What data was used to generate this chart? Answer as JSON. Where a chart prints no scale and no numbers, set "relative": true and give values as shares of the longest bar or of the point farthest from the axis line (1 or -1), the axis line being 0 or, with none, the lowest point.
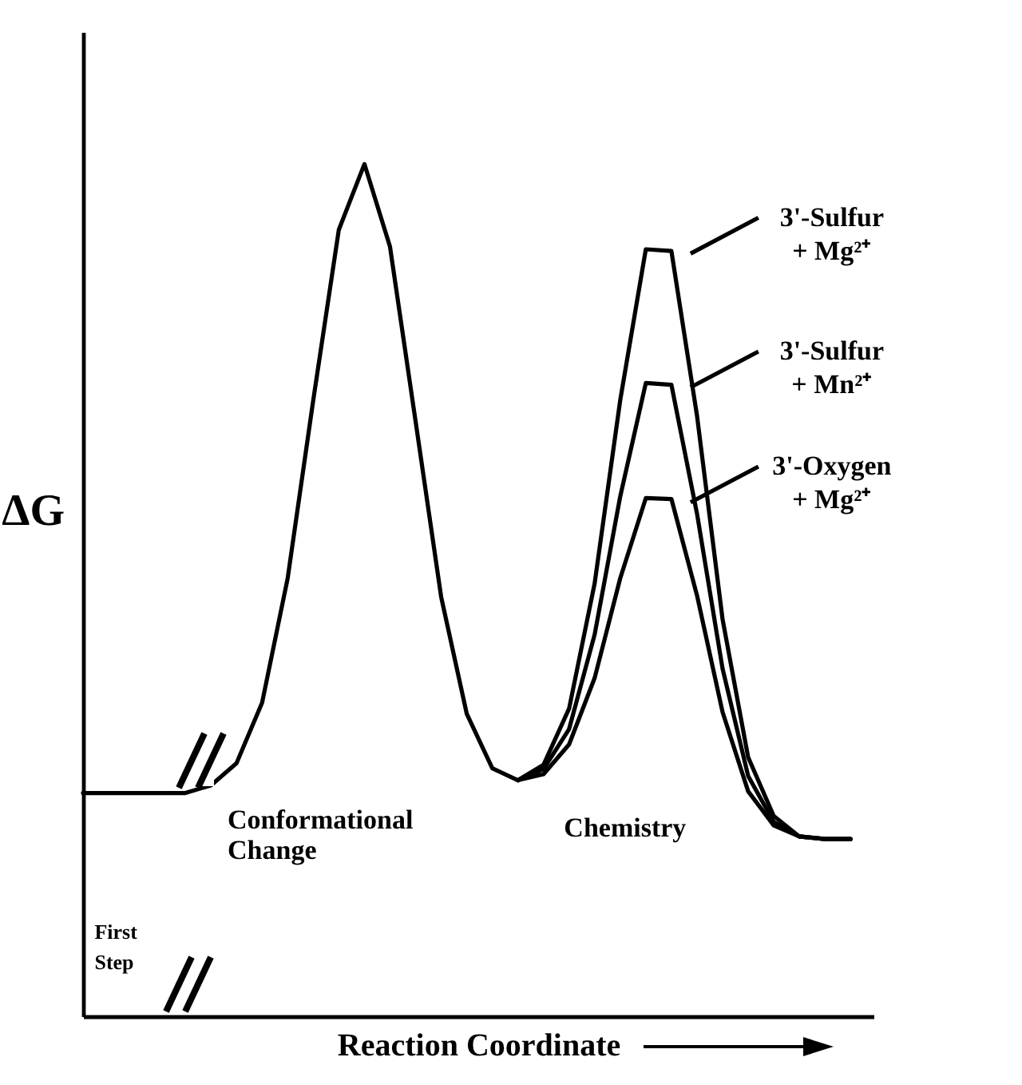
{
  "chart_data": {
    "type": "line",
    "relative": true,
    "xlabel": "Reaction Coordinate",
    "ylabel": "ΔG",
    "categories": [
      null,
      null,
      null,
      null,
      null,
      null,
      null,
      null,
      null,
      null,
      null,
      null,
      null,
      null,
      null,
      null,
      null,
      null,
      null,
      null,
      null,
      null,
      null,
      null,
      null,
      null,
      null,
      null,
      null,
      null,
      null
    ],
    "series": [
      {
        "color": "#000000",
        "values": [
          0.262,
          0.262,
          0.262,
          0.262,
          0.262,
          0.271,
          0.297,
          0.368,
          0.514,
          0.723,
          0.923,
          1,
          0.903,
          0.698,
          0.492,
          0.355,
          0.291,
          0.277,
          null,
          null,
          null,
          null,
          null,
          null,
          null,
          null,
          null,
          null,
          null,
          null,
          null
        ]
      },
      {
        "name": "3'-Sulfur + Mg²⁺",
        "color": "#000000",
        "values": [
          null,
          null,
          null,
          null,
          null,
          null,
          null,
          null,
          null,
          null,
          null,
          null,
          null,
          null,
          null,
          null,
          null,
          0.277,
          0.295,
          0.361,
          0.508,
          0.723,
          0.9,
          0.898,
          0.705,
          0.466,
          0.304,
          0.235,
          0.211,
          0.208,
          0.208
        ]
      },
      {
        "name": "3'-Sulfur + Mn²⁺",
        "color": "#000000",
        "values": [
          null,
          null,
          null,
          null,
          null,
          null,
          null,
          null,
          null,
          null,
          null,
          null,
          null,
          null,
          null,
          null,
          null,
          0.277,
          0.29,
          0.337,
          0.448,
          0.61,
          0.743,
          0.741,
          0.59,
          0.408,
          0.282,
          0.228,
          0.211,
          0.208,
          0.208
        ]
      },
      {
        "name": "3'-Oxygen + Mg²⁺",
        "color": "#000000",
        "values": [
          null,
          null,
          null,
          null,
          null,
          null,
          null,
          null,
          null,
          null,
          null,
          null,
          null,
          null,
          null,
          null,
          null,
          0.277,
          0.284,
          0.319,
          0.397,
          0.514,
          0.608,
          0.607,
          0.494,
          0.357,
          0.264,
          0.224,
          0.211,
          0.208,
          0.208
        ]
      }
    ],
    "annotations": [
      "Conformational Change",
      "Chemistry",
      "First Step"
    ],
    "legend": "top right",
    "marker": "none"
  }
}
